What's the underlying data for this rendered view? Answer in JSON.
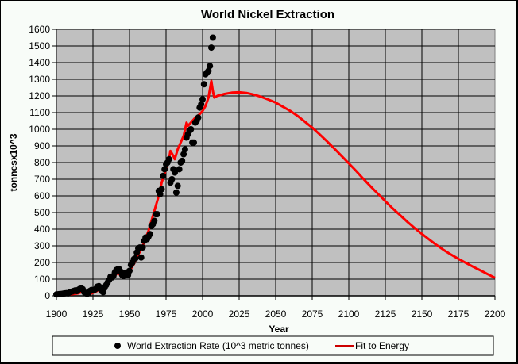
{
  "chart_data": {
    "type": "scatter",
    "title": "World Nickel Extraction",
    "xlabel": "Year",
    "ylabel": "tonnesx10^3",
    "xlim": [
      1900,
      2200
    ],
    "ylim": [
      0,
      1600
    ],
    "x_ticks": [
      "1900",
      "1925",
      "1950",
      "1975",
      "2000",
      "2025",
      "2050",
      "2075",
      "2100",
      "2125",
      "2150",
      "2175",
      "2200"
    ],
    "y_ticks": [
      "0",
      "100",
      "200",
      "300",
      "400",
      "500",
      "600",
      "700",
      "800",
      "900",
      "1000",
      "1100",
      "1200",
      "1300",
      "1400",
      "1500",
      "1600"
    ],
    "grid": true,
    "legend_position": "bottom",
    "colors": {
      "plot_bg": "#c0c0c0",
      "fit": "#ff0000",
      "dots": "#000000",
      "frame_bg": "#f8fcf8"
    },
    "series": [
      {
        "name": "World Extraction Rate  (10^3 metric tonnes)",
        "kind": "scatter",
        "points": [
          [
            1900,
            8
          ],
          [
            1901,
            9
          ],
          [
            1902,
            10
          ],
          [
            1903,
            11
          ],
          [
            1904,
            12
          ],
          [
            1905,
            14
          ],
          [
            1906,
            15
          ],
          [
            1907,
            16
          ],
          [
            1908,
            15
          ],
          [
            1909,
            20
          ],
          [
            1910,
            24
          ],
          [
            1911,
            26
          ],
          [
            1912,
            30
          ],
          [
            1913,
            33
          ],
          [
            1914,
            28
          ],
          [
            1915,
            36
          ],
          [
            1916,
            42
          ],
          [
            1917,
            44
          ],
          [
            1918,
            40
          ],
          [
            1919,
            22
          ],
          [
            1920,
            18
          ],
          [
            1921,
            12
          ],
          [
            1922,
            16
          ],
          [
            1923,
            30
          ],
          [
            1924,
            35
          ],
          [
            1925,
            33
          ],
          [
            1926,
            35
          ],
          [
            1927,
            42
          ],
          [
            1928,
            55
          ],
          [
            1929,
            58
          ],
          [
            1930,
            42
          ],
          [
            1931,
            28
          ],
          [
            1932,
            22
          ],
          [
            1933,
            48
          ],
          [
            1934,
            65
          ],
          [
            1935,
            80
          ],
          [
            1936,
            95
          ],
          [
            1937,
            115
          ],
          [
            1938,
            110
          ],
          [
            1939,
            120
          ],
          [
            1940,
            140
          ],
          [
            1941,
            155
          ],
          [
            1942,
            160
          ],
          [
            1943,
            160
          ],
          [
            1944,
            145
          ],
          [
            1945,
            125
          ],
          [
            1946,
            120
          ],
          [
            1947,
            135
          ],
          [
            1948,
            140
          ],
          [
            1949,
            125
          ],
          [
            1950,
            150
          ],
          [
            1951,
            185
          ],
          [
            1952,
            200
          ],
          [
            1953,
            220
          ],
          [
            1954,
            225
          ],
          [
            1955,
            260
          ],
          [
            1956,
            285
          ],
          [
            1957,
            290
          ],
          [
            1958,
            230
          ],
          [
            1959,
            290
          ],
          [
            1960,
            330
          ],
          [
            1961,
            350
          ],
          [
            1962,
            340
          ],
          [
            1963,
            355
          ],
          [
            1964,
            370
          ],
          [
            1965,
            420
          ],
          [
            1966,
            430
          ],
          [
            1967,
            450
          ],
          [
            1968,
            490
          ],
          [
            1969,
            490
          ],
          [
            1970,
            630
          ],
          [
            1971,
            610
          ],
          [
            1972,
            640
          ],
          [
            1973,
            720
          ],
          [
            1974,
            760
          ],
          [
            1975,
            790
          ],
          [
            1976,
            800
          ],
          [
            1977,
            820
          ],
          [
            1978,
            680
          ],
          [
            1979,
            700
          ],
          [
            1980,
            760
          ],
          [
            1981,
            740
          ],
          [
            1982,
            620
          ],
          [
            1983,
            660
          ],
          [
            1984,
            760
          ],
          [
            1985,
            800
          ],
          [
            1986,
            810
          ],
          [
            1987,
            850
          ],
          [
            1988,
            880
          ],
          [
            1989,
            950
          ],
          [
            1990,
            970
          ],
          [
            1991,
            990
          ],
          [
            1992,
            1000
          ],
          [
            1993,
            920
          ],
          [
            1994,
            920
          ],
          [
            1995,
            1040
          ],
          [
            1996,
            1050
          ],
          [
            1997,
            1070
          ],
          [
            1998,
            1130
          ],
          [
            1999,
            1150
          ],
          [
            2000,
            1180
          ],
          [
            2001,
            1270
          ],
          [
            2002,
            1330
          ],
          [
            2003,
            1340
          ],
          [
            2004,
            1350
          ],
          [
            2005,
            1380
          ],
          [
            2006,
            1490
          ],
          [
            2007,
            1550
          ]
        ]
      },
      {
        "name": "Fit to Energy",
        "kind": "line",
        "points": [
          [
            1900,
            2
          ],
          [
            1905,
            4
          ],
          [
            1910,
            8
          ],
          [
            1915,
            15
          ],
          [
            1918,
            25
          ],
          [
            1920,
            10
          ],
          [
            1922,
            5
          ],
          [
            1925,
            18
          ],
          [
            1928,
            30
          ],
          [
            1930,
            45
          ],
          [
            1932,
            30
          ],
          [
            1935,
            60
          ],
          [
            1938,
            110
          ],
          [
            1940,
            120
          ],
          [
            1942,
            140
          ],
          [
            1945,
            110
          ],
          [
            1948,
            120
          ],
          [
            1950,
            150
          ],
          [
            1953,
            190
          ],
          [
            1955,
            230
          ],
          [
            1958,
            280
          ],
          [
            1960,
            320
          ],
          [
            1963,
            390
          ],
          [
            1965,
            450
          ],
          [
            1967,
            510
          ],
          [
            1968,
            540
          ],
          [
            1970,
            600
          ],
          [
            1972,
            680
          ],
          [
            1975,
            760
          ],
          [
            1977,
            820
          ],
          [
            1978,
            870
          ],
          [
            1980,
            840
          ],
          [
            1981,
            820
          ],
          [
            1983,
            880
          ],
          [
            1985,
            920
          ],
          [
            1987,
            960
          ],
          [
            1989,
            1040
          ],
          [
            1990,
            1020
          ],
          [
            1992,
            1040
          ],
          [
            1995,
            1070
          ],
          [
            1998,
            1090
          ],
          [
            2000,
            1110
          ],
          [
            2002,
            1140
          ],
          [
            2004,
            1190
          ],
          [
            2005,
            1240
          ],
          [
            2006,
            1290
          ],
          [
            2007,
            1230
          ],
          [
            2008,
            1190
          ],
          [
            2010,
            1200
          ],
          [
            2015,
            1212
          ],
          [
            2020,
            1220
          ],
          [
            2025,
            1222
          ],
          [
            2030,
            1218
          ],
          [
            2035,
            1208
          ],
          [
            2040,
            1195
          ],
          [
            2045,
            1178
          ],
          [
            2050,
            1160
          ],
          [
            2055,
            1135
          ],
          [
            2060,
            1110
          ],
          [
            2065,
            1080
          ],
          [
            2070,
            1045
          ],
          [
            2075,
            1010
          ],
          [
            2080,
            970
          ],
          [
            2085,
            928
          ],
          [
            2090,
            885
          ],
          [
            2095,
            840
          ],
          [
            2100,
            795
          ],
          [
            2105,
            750
          ],
          [
            2110,
            702
          ],
          [
            2115,
            656
          ],
          [
            2120,
            612
          ],
          [
            2125,
            568
          ],
          [
            2130,
            525
          ],
          [
            2135,
            485
          ],
          [
            2140,
            445
          ],
          [
            2145,
            407
          ],
          [
            2150,
            372
          ],
          [
            2155,
            338
          ],
          [
            2160,
            305
          ],
          [
            2165,
            275
          ],
          [
            2170,
            247
          ],
          [
            2175,
            222
          ],
          [
            2180,
            198
          ],
          [
            2185,
            175
          ],
          [
            2190,
            153
          ],
          [
            2195,
            130
          ],
          [
            2200,
            108
          ]
        ]
      }
    ]
  },
  "legend": {
    "dots_label": "World Extraction Rate  (10^3 metric tonnes)",
    "fit_label": "Fit to Energy"
  }
}
